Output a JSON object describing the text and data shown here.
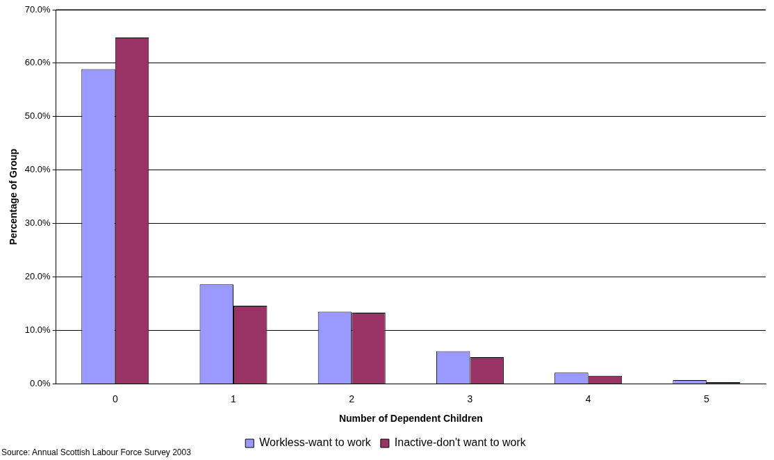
{
  "chart_data": {
    "type": "bar",
    "xlabel": "Number of Dependent Children",
    "ylabel": "Percentage of Group",
    "categories": [
      "0",
      "1",
      "2",
      "3",
      "4",
      "5"
    ],
    "series": [
      {
        "name": "Workless-want to work",
        "color": "#9999ff",
        "values": [
          58.9,
          18.6,
          13.5,
          6.1,
          2.1,
          0.7
        ]
      },
      {
        "name": "Inactive-don't want to work",
        "color": "#993366",
        "values": [
          64.8,
          14.6,
          13.3,
          5.0,
          1.5,
          0.3
        ]
      }
    ],
    "ylim": [
      0,
      70
    ],
    "yticks": [
      {
        "value": 0,
        "label": "0.0%"
      },
      {
        "value": 10,
        "label": "10.0%"
      },
      {
        "value": 20,
        "label": "20.0%"
      },
      {
        "value": 30,
        "label": "30.0%"
      },
      {
        "value": 40,
        "label": "40.0%"
      },
      {
        "value": 50,
        "label": "50.0%"
      },
      {
        "value": 60,
        "label": "60.0%"
      },
      {
        "value": 70,
        "label": "70.0%"
      }
    ],
    "grid": "y",
    "legend": "bottom",
    "annotations": [
      "Source: Annual Scottish Labour Force Survey 2003"
    ]
  }
}
